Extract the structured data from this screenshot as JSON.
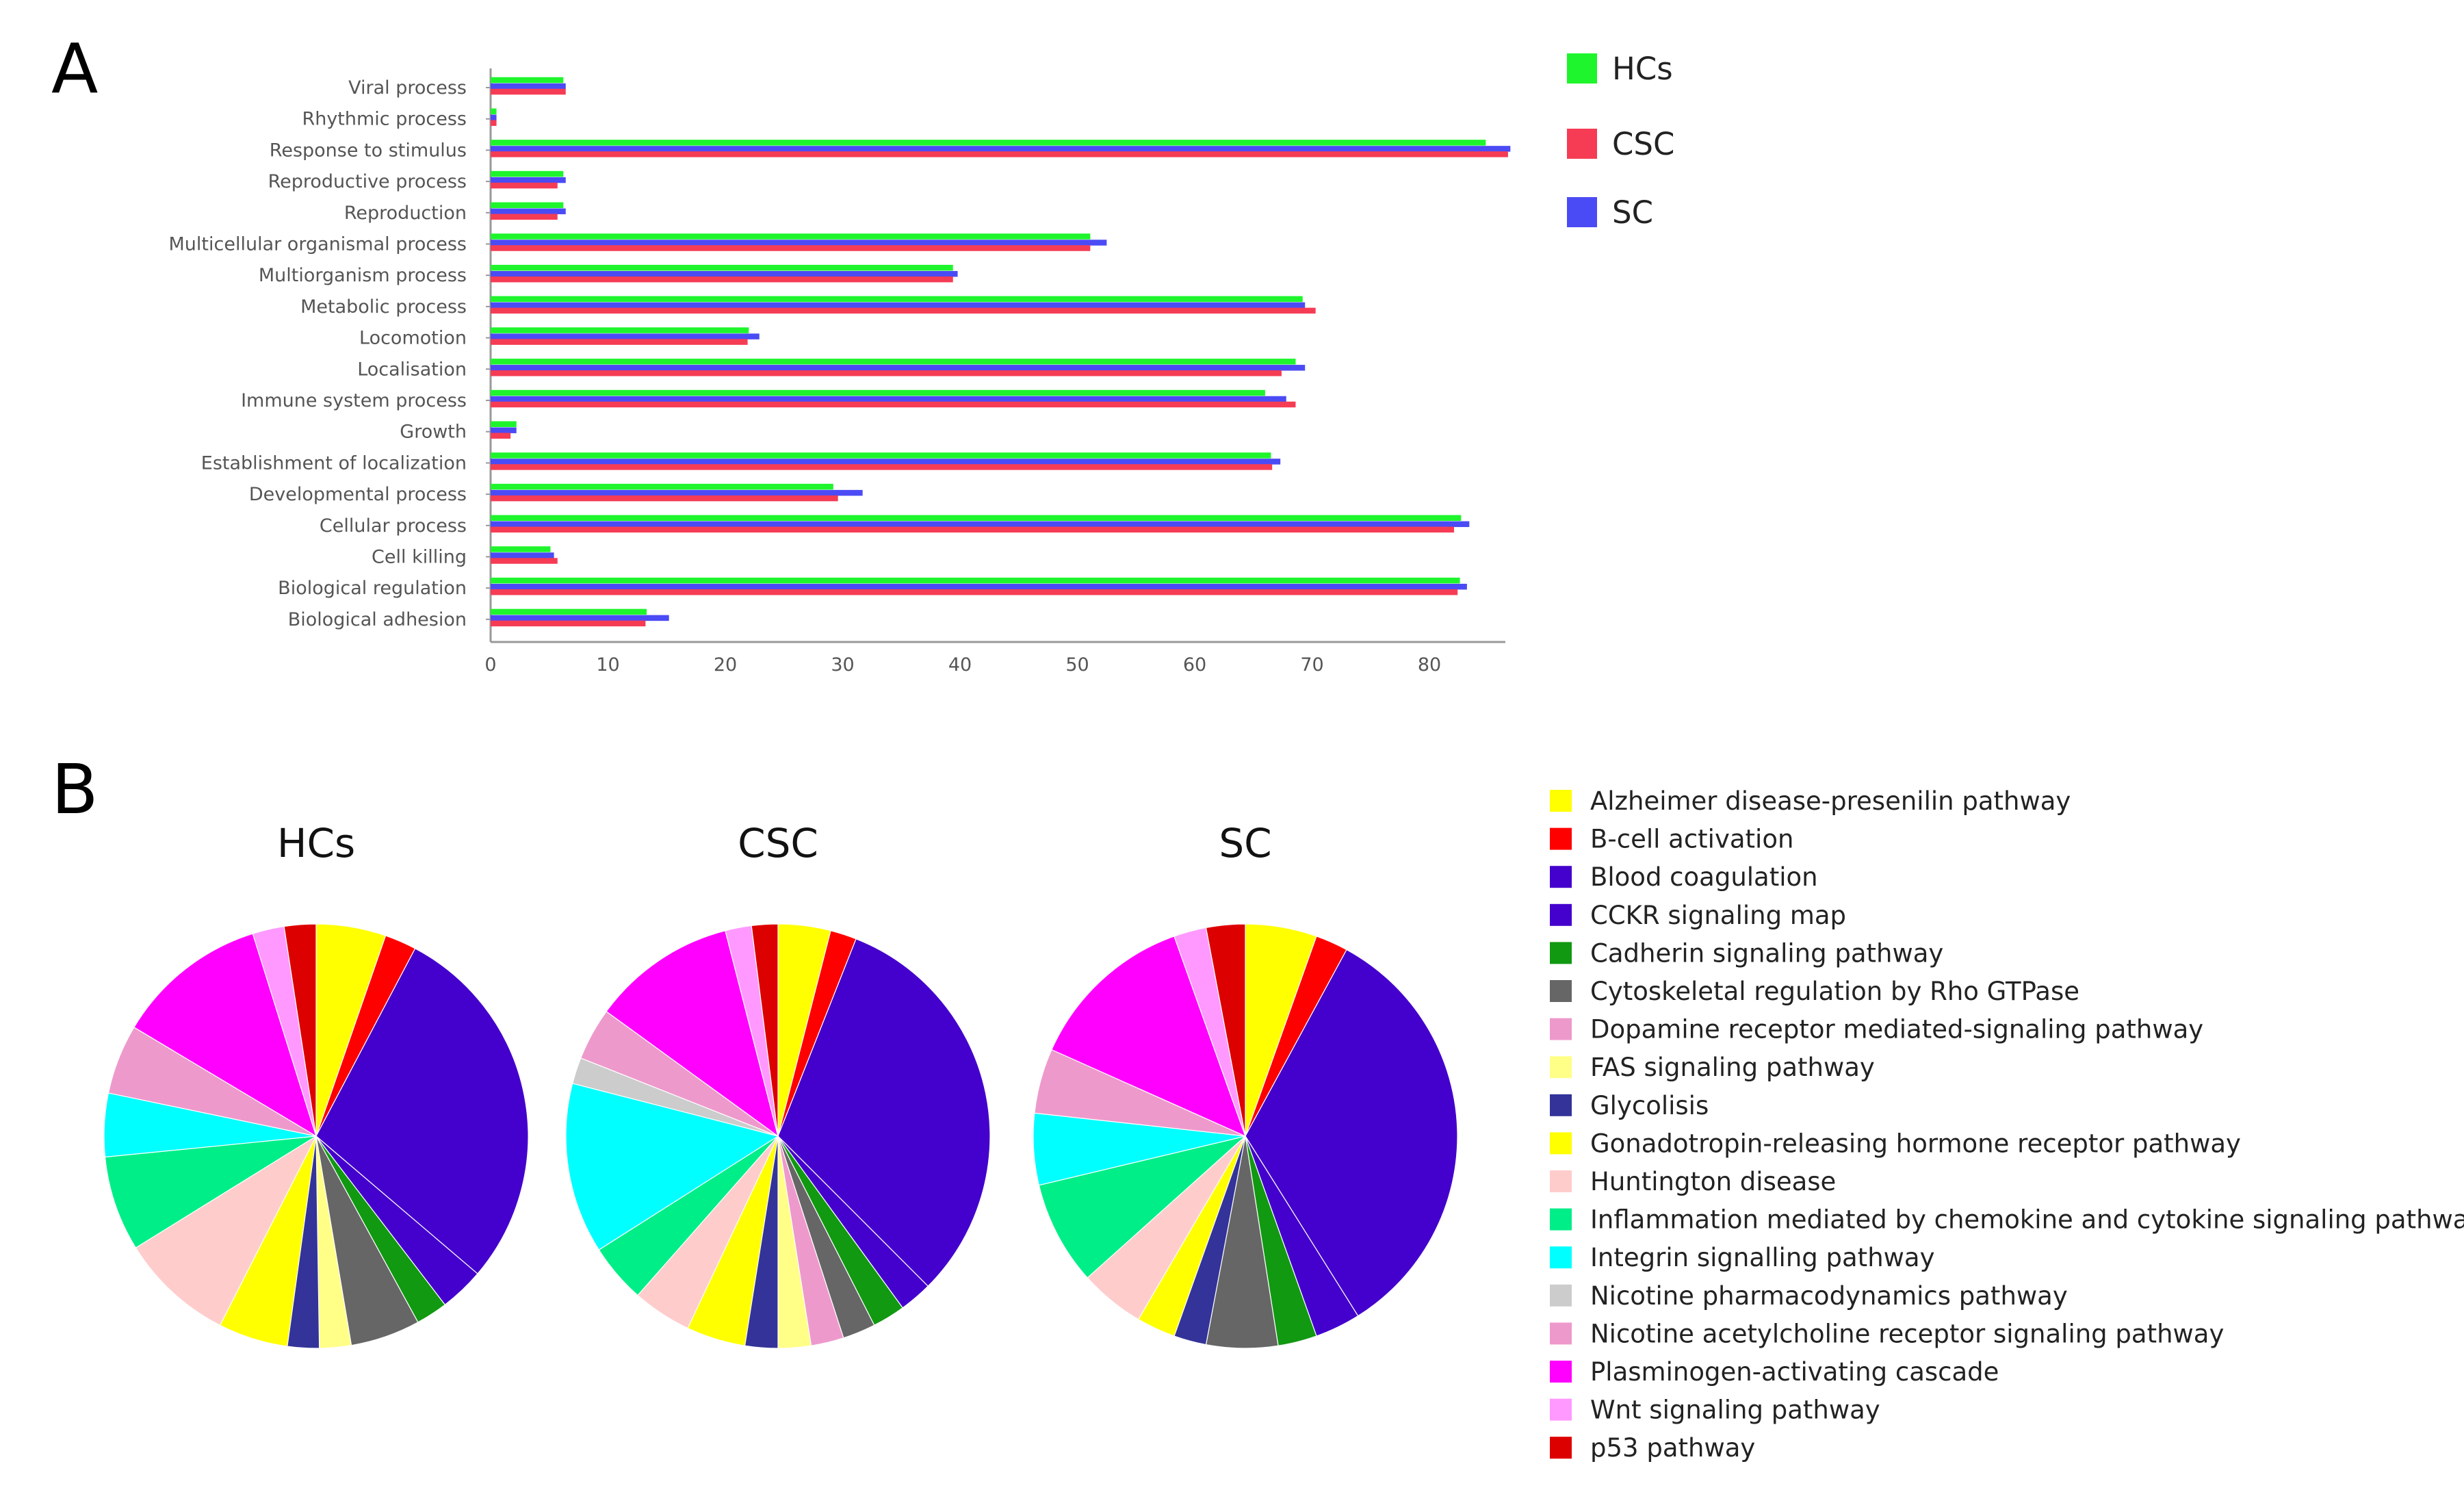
{
  "panels": {
    "a": "A",
    "b": "B"
  },
  "colors": {
    "HCs": "#1ef52c",
    "CSC": "#f53c54",
    "SC": "#4b4bf5"
  },
  "chart_data": [
    {
      "type": "bar",
      "orientation": "horizontal",
      "categories": [
        "Viral process",
        "Rhythmic process",
        "Response to stimulus",
        "Reproductive process",
        "Reproduction",
        "Multicellular organismal process",
        "Multiorganism process",
        "Metabolic process",
        "Locomotion",
        "Localisation",
        "Immune system process",
        "Growth",
        "Establishment of localization",
        "Developmental process",
        "Cellular process",
        "Cell killing",
        "Biological regulation",
        "Biological adhesion"
      ],
      "series": [
        {
          "name": "HCs",
          "values": [
            6.2,
            0.5,
            84.8,
            6.2,
            6.2,
            51.1,
            39.4,
            69.2,
            22.0,
            68.6,
            66.0,
            2.2,
            66.5,
            29.2,
            82.7,
            5.1,
            82.6,
            13.3
          ]
        },
        {
          "name": "SC",
          "values": [
            6.4,
            0.5,
            86.9,
            6.4,
            6.4,
            52.5,
            39.8,
            69.4,
            22.9,
            69.4,
            67.8,
            2.2,
            67.3,
            31.7,
            83.4,
            5.4,
            83.2,
            15.2
          ]
        },
        {
          "name": "CSC",
          "values": [
            6.4,
            0.5,
            86.7,
            5.7,
            5.7,
            51.1,
            39.4,
            70.3,
            21.9,
            67.4,
            68.6,
            1.7,
            66.6,
            29.6,
            82.1,
            5.7,
            82.4,
            13.2
          ]
        }
      ],
      "xticks": [
        "0",
        "10",
        "20",
        "30",
        "40",
        "50",
        "60",
        "70",
        "80"
      ],
      "xlim": [
        0,
        86.7
      ],
      "legend": [
        "HCs",
        "CSC",
        "SC"
      ],
      "legend_position": "right"
    },
    {
      "type": "pie",
      "title": "HCs",
      "categories": [
        "Alzheimer disease-presenilin pathway",
        "B-cell activation",
        "Blood coagulation",
        "CCKR signaling map",
        "Cadherin signaling pathway",
        "Cytoskeletal regulation by Rho GTPase",
        "Dopamine receptor mediated-signaling pathway",
        "FAS signaling pathway",
        "Glycolisis",
        "Gonadotropin-releasing hormone receptor pathway",
        "Huntington disease",
        "Inflammation mediated by chemokine and cytokine signaling pathway",
        "Integrin signalling pathway",
        "Nicotine pharmacodynamics pathway",
        "Nicotine acetylcholine receptor signaling pathway",
        "Plasminogen-activating cascade",
        "Wnt signaling pathway",
        "p53 pathway"
      ],
      "values": [
        5.5,
        2.5,
        29.5,
        3.5,
        2.5,
        5.5,
        0,
        2.5,
        2.5,
        5.5,
        9.0,
        7.5,
        5.0,
        0,
        5.5,
        12.0,
        2.5,
        2.5
      ]
    },
    {
      "type": "pie",
      "title": "CSC",
      "categories": [
        "Alzheimer disease-presenilin pathway",
        "B-cell activation",
        "Blood coagulation",
        "CCKR signaling map",
        "Cadherin signaling pathway",
        "Cytoskeletal regulation by Rho GTPase",
        "Dopamine receptor mediated-signaling pathway",
        "FAS signaling pathway",
        "Glycolisis",
        "Gonadotropin-releasing hormone receptor pathway",
        "Huntington disease",
        "Inflammation mediated by chemokine and cytokine signaling pathway",
        "Integrin signalling pathway",
        "Nicotine pharmacodynamics pathway",
        "Nicotine acetylcholine receptor signaling pathway",
        "Plasminogen-activating cascade",
        "Wnt signaling pathway",
        "p53 pathway"
      ],
      "values": [
        4.0,
        2.0,
        31.5,
        2.5,
        2.5,
        2.5,
        2.5,
        2.5,
        2.5,
        4.5,
        4.5,
        4.5,
        13.0,
        2.0,
        4.0,
        11.0,
        2.0,
        2.0
      ]
    },
    {
      "type": "pie",
      "title": "SC",
      "categories": [
        "Alzheimer disease-presenilin pathway",
        "B-cell activation",
        "Blood coagulation",
        "CCKR signaling map",
        "Cadherin signaling pathway",
        "Cytoskeletal regulation by Rho GTPase",
        "Dopamine receptor mediated-signaling pathway",
        "FAS signaling pathway",
        "Glycolisis",
        "Gonadotropin-releasing hormone receptor pathway",
        "Huntington disease",
        "Inflammation mediated by chemokine and cytokine signaling pathway",
        "Integrin signalling pathway",
        "Nicotine pharmacodynamics pathway",
        "Nicotine acetylcholine receptor signaling pathway",
        "Plasminogen-activating cascade",
        "Wnt signaling pathway",
        "p53 pathway"
      ],
      "values": [
        5.5,
        2.5,
        33.5,
        3.5,
        3.0,
        5.5,
        0,
        0,
        2.5,
        3.0,
        5.0,
        8.0,
        5.5,
        0,
        5.0,
        13.0,
        2.5,
        3.0
      ]
    }
  ],
  "pathway_legend": [
    {
      "label": "Alzheimer disease-presenilin pathway",
      "color": "#ffff00"
    },
    {
      "label": "B-cell activation",
      "color": "#ff0000"
    },
    {
      "label": "Blood coagulation",
      "color": "#4400cc"
    },
    {
      "label": "CCKR signaling map",
      "color": "#4400cc"
    },
    {
      "label": "Cadherin signaling pathway",
      "color": "#119911"
    },
    {
      "label": "Cytoskeletal regulation by Rho GTPase",
      "color": "#666666"
    },
    {
      "label": "Dopamine receptor mediated-signaling pathway",
      "color": "#ee99cc"
    },
    {
      "label": "FAS signaling pathway",
      "color": "#ffff88"
    },
    {
      "label": "Glycolisis",
      "color": "#333399"
    },
    {
      "label": "Gonadotropin-releasing hormone receptor pathway",
      "color": "#ffff00"
    },
    {
      "label": "Huntington disease",
      "color": "#ffcccc"
    },
    {
      "label": "Inflammation mediated by chemokine and cytokine signaling pathway",
      "color": "#00ee88"
    },
    {
      "label": "Integrin signalling pathway",
      "color": "#00ffff"
    },
    {
      "label": "Nicotine pharmacodynamics pathway",
      "color": "#cccccc"
    },
    {
      "label": "Nicotine acetylcholine receptor signaling pathway",
      "color": "#ee99cc"
    },
    {
      "label": "Plasminogen-activating cascade",
      "color": "#ff00ff"
    },
    {
      "label": "Wnt signaling pathway",
      "color": "#ff99ff"
    },
    {
      "label": "p53 pathway",
      "color": "#dd0000"
    }
  ]
}
